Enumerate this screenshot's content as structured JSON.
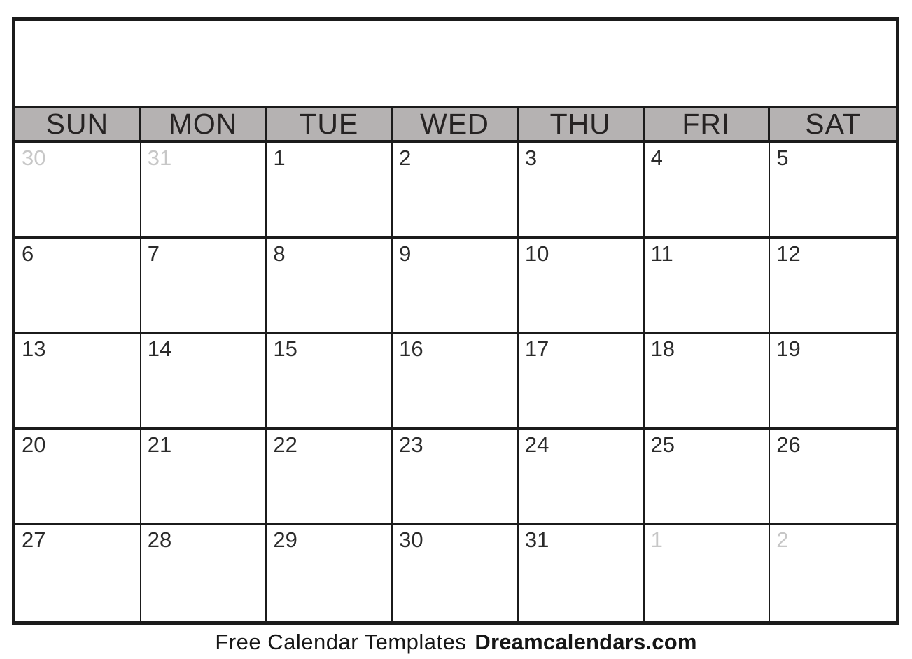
{
  "calendar": {
    "title_box": {
      "value": ""
    },
    "weekdays": [
      "SUN",
      "MON",
      "TUE",
      "WED",
      "THU",
      "FRI",
      "SAT"
    ],
    "weeks": [
      {
        "days": [
          {
            "label": "30",
            "muted": true
          },
          {
            "label": "31",
            "muted": true
          },
          {
            "label": "1",
            "muted": false
          },
          {
            "label": "2",
            "muted": false
          },
          {
            "label": "3",
            "muted": false
          },
          {
            "label": "4",
            "muted": false
          },
          {
            "label": "5",
            "muted": false
          }
        ]
      },
      {
        "days": [
          {
            "label": "6",
            "muted": false
          },
          {
            "label": "7",
            "muted": false
          },
          {
            "label": "8",
            "muted": false
          },
          {
            "label": "9",
            "muted": false
          },
          {
            "label": "10",
            "muted": false
          },
          {
            "label": "11",
            "muted": false
          },
          {
            "label": "12",
            "muted": false
          }
        ]
      },
      {
        "days": [
          {
            "label": "13",
            "muted": false
          },
          {
            "label": "14",
            "muted": false
          },
          {
            "label": "15",
            "muted": false
          },
          {
            "label": "16",
            "muted": false
          },
          {
            "label": "17",
            "muted": false
          },
          {
            "label": "18",
            "muted": false
          },
          {
            "label": "19",
            "muted": false
          }
        ]
      },
      {
        "days": [
          {
            "label": "20",
            "muted": false
          },
          {
            "label": "21",
            "muted": false
          },
          {
            "label": "22",
            "muted": false
          },
          {
            "label": "23",
            "muted": false
          },
          {
            "label": "24",
            "muted": false
          },
          {
            "label": "25",
            "muted": false
          },
          {
            "label": "26",
            "muted": false
          }
        ]
      },
      {
        "days": [
          {
            "label": "27",
            "muted": false
          },
          {
            "label": "28",
            "muted": false
          },
          {
            "label": "29",
            "muted": false
          },
          {
            "label": "30",
            "muted": false
          },
          {
            "label": "31",
            "muted": false
          },
          {
            "label": "1",
            "muted": true
          },
          {
            "label": "2",
            "muted": true
          }
        ]
      }
    ],
    "colors": {
      "weekday_bg": "#b5b2b2",
      "grid_line": "#1b1b1b",
      "date_text": "#2b2b2b",
      "muted_date_text": "#c7c7c7"
    }
  },
  "footer": {
    "prefix": "Free Calendar Templates",
    "brand": "Dreamcalendars.com"
  }
}
